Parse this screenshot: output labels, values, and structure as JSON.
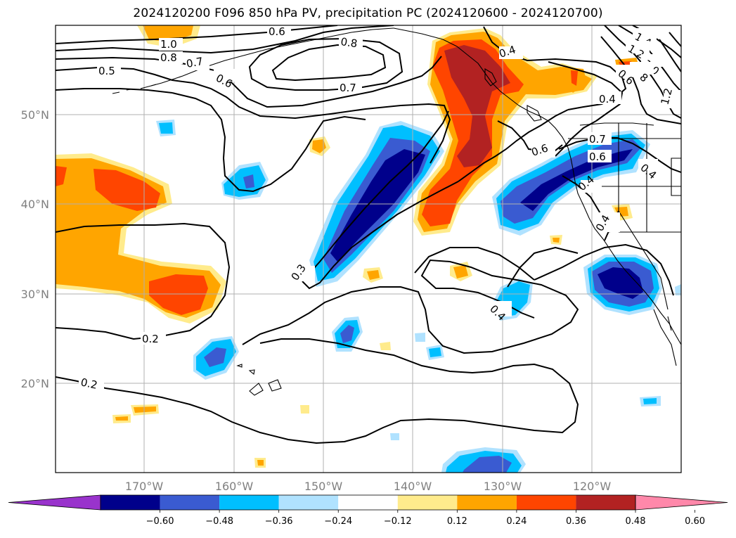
{
  "title": "2024120200 F096 850 hPa PV, precipitation PC (2024120600 - 2024120700)",
  "lat_labels": [
    "50°N",
    "40°N",
    "30°N",
    "20°N"
  ],
  "lon_labels": [
    "170°W",
    "160°W",
    "150°W",
    "140°W",
    "130°W",
    "120°W"
  ],
  "colorbar": {
    "tick_labels": [
      "−0.60",
      "−0.48",
      "−0.36",
      "−0.24",
      "−0.12",
      "0.12",
      "0.24",
      "0.36",
      "0.48",
      "0.60"
    ],
    "colors": [
      "#9933cc",
      "#00008b",
      "#3a5bd1",
      "#00bfff",
      "#b0e2ff",
      "#ffffff",
      "#ffeb8c",
      "#ffa500",
      "#ff4500",
      "#b22222",
      "#ff88aa"
    ]
  },
  "contour_labels": [
    "1.0",
    "0.8",
    "0.7",
    "0.6",
    "0.5",
    "0.6",
    "0.8",
    "0.7",
    "0.4",
    "1.4",
    "1.2",
    "1.0",
    "0.8",
    "0.6",
    "0.4",
    "1.2",
    "0.7",
    "0.6",
    "0.6",
    "0.4",
    "0.4",
    "0.4",
    "0.3",
    "0.2",
    "0.2",
    "0.4"
  ],
  "colors": {
    "contour": "#000000",
    "grid": "#b0b0b0",
    "coast": "#000000"
  }
}
